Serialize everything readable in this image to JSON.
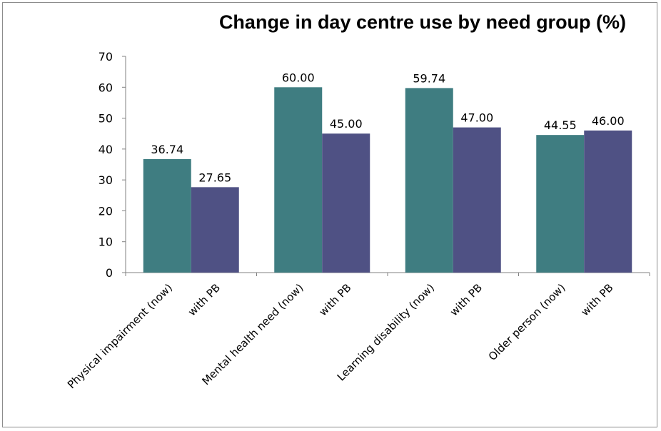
{
  "chart_data": {
    "type": "bar",
    "title": "Change in day centre use by need group (%)",
    "xlabel": "",
    "ylabel": "",
    "ylim": [
      0,
      70
    ],
    "yticks": [
      0,
      10,
      20,
      30,
      40,
      50,
      60,
      70
    ],
    "grid": false,
    "legend": "none",
    "categories": [
      "Physical impairment (now)",
      "with PB",
      "Mental health need (now)",
      "with PB",
      "Learning disability (now)",
      "with PB",
      "Older person (now)",
      "with PB"
    ],
    "values": [
      36.74,
      27.65,
      60.0,
      45.0,
      59.74,
      47.0,
      44.55,
      46.0
    ],
    "data_labels": [
      "36.74",
      "27.65",
      "60.00",
      "45.00",
      "59.74",
      "47.00",
      "44.55",
      "46.00"
    ],
    "bar_colors": [
      "#3f7d81",
      "#4f5184",
      "#3f7d81",
      "#4f5184",
      "#3f7d81",
      "#4f5184",
      "#3f7d81",
      "#4f5184"
    ]
  }
}
